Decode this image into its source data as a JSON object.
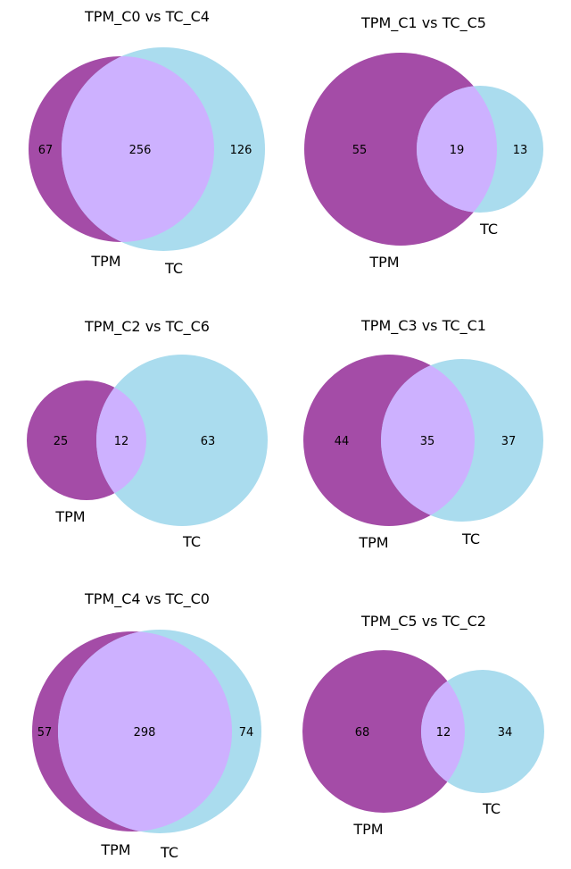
{
  "colors": {
    "set_a": "#a44ca7",
    "set_b": "#aadcee",
    "overlap": "#cdb1ff"
  },
  "chart_data": [
    {
      "type": "venn",
      "title": "TPM_C0 vs TC_C4",
      "set_a": "TPM",
      "set_b": "TC",
      "only_a": "67",
      "both": "256",
      "only_b": "126"
    },
    {
      "type": "venn",
      "title": "TPM_C1 vs TC_C5",
      "set_a": "TPM",
      "set_b": "TC",
      "only_a": "55",
      "both": "19",
      "only_b": "13"
    },
    {
      "type": "venn",
      "title": "TPM_C2 vs TC_C6",
      "set_a": "TPM",
      "set_b": "TC",
      "only_a": "25",
      "both": "12",
      "only_b": "63"
    },
    {
      "type": "venn",
      "title": "TPM_C3 vs TC_C1",
      "set_a": "TPM",
      "set_b": "TC",
      "only_a": "44",
      "both": "35",
      "only_b": "37"
    },
    {
      "type": "venn",
      "title": "TPM_C4 vs TC_C0",
      "set_a": "TPM",
      "set_b": "TC",
      "only_a": "57",
      "both": "298",
      "only_b": "74"
    },
    {
      "type": "venn",
      "title": "TPM_C5 vs TC_C2",
      "set_a": "TPM",
      "set_b": "TC",
      "only_a": "68",
      "both": "12",
      "only_b": "34"
    }
  ]
}
